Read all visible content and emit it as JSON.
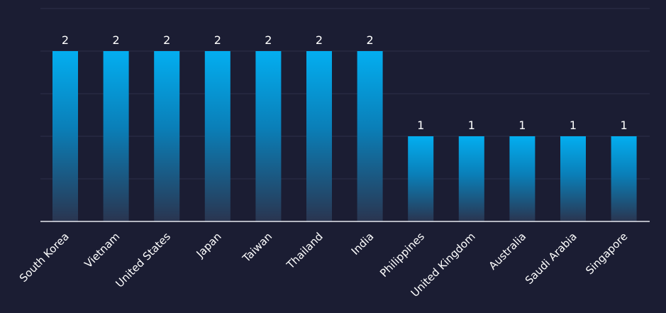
{
  "colors": {
    "background": "#1b1d33",
    "bar_top": "#03aef0",
    "bar_bottom": "#2a3550",
    "grid": "#2c2f4a",
    "axis": "#e6e8f0",
    "text": "#ffffff"
  },
  "chart_data": {
    "type": "bar",
    "title": "",
    "xlabel": "",
    "ylabel": "",
    "categories": [
      "South Korea",
      "Vietnam",
      "United States",
      "Japan",
      "Taiwan",
      "Thailand",
      "India",
      "Philippines",
      "United Kingdom",
      "Australia",
      "Saudi Arabia",
      "Singapore"
    ],
    "values": [
      2,
      2,
      2,
      2,
      2,
      2,
      2,
      1,
      1,
      1,
      1,
      1
    ],
    "ylim": [
      0,
      2.5
    ],
    "grid": true,
    "legend": "none",
    "data_labels": true
  }
}
